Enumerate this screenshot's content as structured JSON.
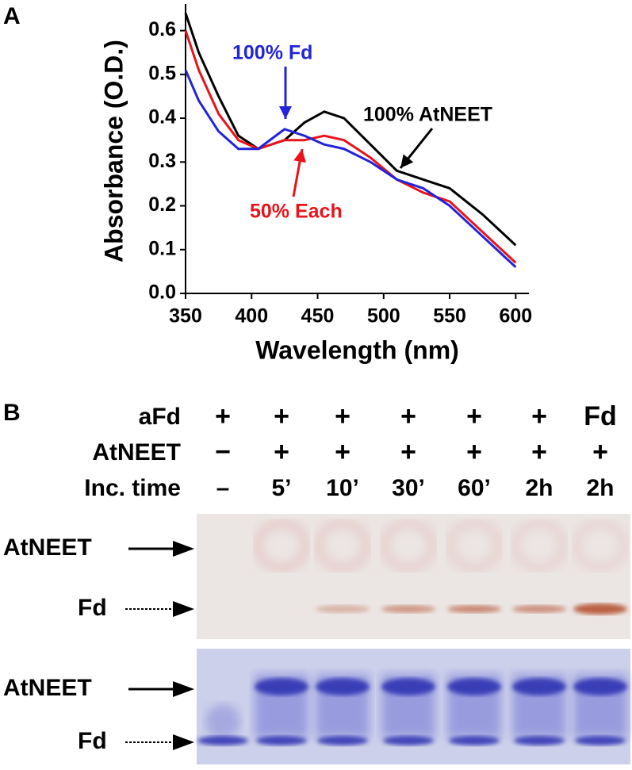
{
  "chart_data": {
    "type": "line",
    "panel_label": "A",
    "x_label": "Wavelength (nm)",
    "y_label": "Absorbance (O.D.)",
    "x": [
      350,
      360,
      375,
      390,
      405,
      425,
      440,
      455,
      470,
      490,
      510,
      530,
      550,
      575,
      600
    ],
    "series": [
      {
        "name": "100% AtNEET",
        "color": "#000000",
        "values": [
          0.64,
          0.55,
          0.45,
          0.36,
          0.33,
          0.35,
          0.39,
          0.415,
          0.4,
          0.34,
          0.28,
          0.26,
          0.24,
          0.18,
          0.11
        ]
      },
      {
        "name": "50% Each",
        "color": "#e8141b",
        "values": [
          0.6,
          0.51,
          0.41,
          0.35,
          0.33,
          0.35,
          0.35,
          0.36,
          0.35,
          0.31,
          0.26,
          0.23,
          0.21,
          0.14,
          0.07
        ]
      },
      {
        "name": "100% Fd",
        "color": "#2323d8",
        "values": [
          0.51,
          0.44,
          0.37,
          0.33,
          0.33,
          0.375,
          0.36,
          0.34,
          0.33,
          0.3,
          0.26,
          0.24,
          0.2,
          0.13,
          0.06
        ]
      }
    ],
    "xlim": [
      350,
      610
    ],
    "xticks": [
      350,
      400,
      450,
      500,
      550,
      600
    ],
    "ylim": [
      0,
      0.65
    ],
    "yticks": [
      {
        "value": 0,
        "label": "0.0"
      },
      0.1,
      0.2,
      0.3,
      0.4,
      0.5,
      0.6
    ]
  },
  "panel_b": {
    "panel_label": "B",
    "row_labels": [
      "aFd",
      "AtNEET",
      "Inc. time"
    ],
    "rows": [
      [
        "+",
        "+",
        "+",
        "+",
        "+",
        "+",
        "Fd"
      ],
      [
        "−",
        "+",
        "+",
        "+",
        "+",
        "+",
        "+"
      ],
      [
        "–",
        "5’",
        "10’",
        "30’",
        "60’",
        "2h",
        "2h"
      ]
    ],
    "gel_labels": [
      [
        "AtNEET",
        "Fd"
      ],
      [
        "AtNEET",
        "Fd"
      ]
    ]
  }
}
